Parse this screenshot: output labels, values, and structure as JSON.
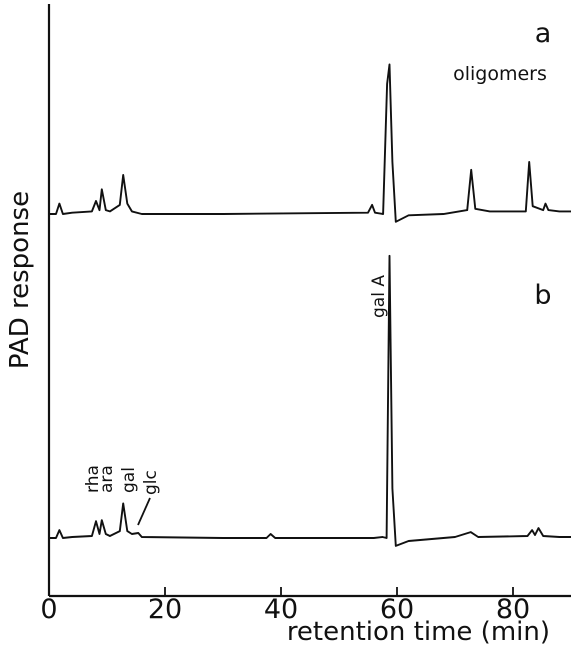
{
  "chart_data": {
    "type": "line",
    "title": "",
    "xlabel": "retention time (min)",
    "ylabel": "PAD response",
    "xlim": [
      0,
      90
    ],
    "x_ticks": [
      0,
      20,
      40,
      60,
      80
    ],
    "x_tick_labels": [
      "0",
      "20",
      "40",
      "60",
      "80"
    ],
    "grid": false,
    "y_ticks": "none",
    "panels": [
      {
        "label": "a",
        "annotations": [
          {
            "text": "oligomers",
            "x": 80
          }
        ],
        "series": [
          {
            "x": [
              0,
              1.2,
              1.8,
              2.4,
              4,
              7.4,
              8.1,
              8.7,
              9.1,
              9.8,
              10.5,
              12.2,
              12.8,
              13.5,
              14.3,
              16,
              30,
              55,
              55.7,
              56.2,
              57.6,
              58.3,
              58.7,
              59.2,
              59.8,
              62,
              68,
              72.1,
              72.8,
              73.5,
              76,
              82.2,
              82.8,
              83.4,
              85.2,
              85.6,
              86.1,
              88,
              90
            ],
            "y": [
              0,
              0,
              0.8,
              0,
              0.1,
              0.2,
              1.0,
              0.3,
              1.9,
              0.3,
              0.2,
              0.7,
              3.0,
              0.8,
              0.2,
              0,
              0,
              0.1,
              0.7,
              0.1,
              0,
              10.0,
              11.5,
              4.0,
              -0.6,
              -0.1,
              0,
              0.3,
              3.4,
              0.4,
              0.2,
              0.2,
              4.0,
              0.6,
              0.3,
              0.8,
              0.3,
              0.2,
              0.2
            ]
          }
        ]
      },
      {
        "label": "b",
        "annotations": [
          {
            "text": "rha",
            "x": 8
          },
          {
            "text": "ara",
            "x": 9.3
          },
          {
            "text": "gal",
            "x": 12.6
          },
          {
            "text": "glc",
            "x": 14.8
          },
          {
            "text": "gal A",
            "x": 58.7
          }
        ],
        "series": [
          {
            "x": [
              0,
              1.2,
              1.8,
              2.4,
              4,
              7.4,
              8.1,
              8.7,
              9.1,
              9.8,
              10.5,
              12.2,
              12.8,
              13.5,
              14.3,
              15.4,
              16,
              30,
              37.5,
              38.2,
              39,
              56,
              57.5,
              58.2,
              58.7,
              59.2,
              59.8,
              62,
              70,
              72.7,
              74,
              82.5,
              83.3,
              83.8,
              84.4,
              85.2,
              88,
              90
            ],
            "y": [
              0,
              0,
              0.8,
              0,
              0.1,
              0.2,
              1.7,
              0.4,
              1.8,
              0.4,
              0.2,
              0.7,
              3.5,
              0.7,
              0.4,
              0.5,
              0.1,
              0,
              0,
              0.4,
              0,
              0,
              0.1,
              0,
              28.5,
              5.0,
              -0.8,
              -0.3,
              0.1,
              0.6,
              0.1,
              0.2,
              0.8,
              0.3,
              1.0,
              0.2,
              0.1,
              0.1
            ]
          }
        ]
      }
    ]
  }
}
